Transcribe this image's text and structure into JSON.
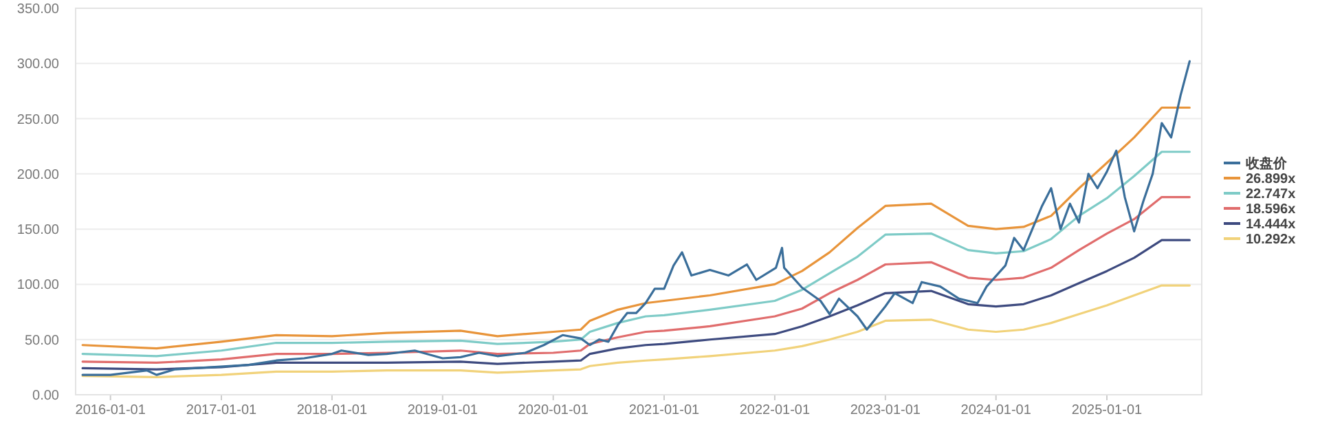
{
  "chart_data": {
    "type": "line",
    "grid": "y",
    "legend": "right",
    "marker": "none",
    "line_style": "solid",
    "xlim": [
      "2015-09-08",
      "2025-11-10"
    ],
    "ylim": [
      0,
      350
    ],
    "xticks": [
      {
        "value": "2016-01-01",
        "label": "2016-01-01"
      },
      {
        "value": "2017-01-01",
        "label": "2017-01-01"
      },
      {
        "value": "2018-01-01",
        "label": "2018-01-01"
      },
      {
        "value": "2019-01-01",
        "label": "2019-01-01"
      },
      {
        "value": "2020-01-01",
        "label": "2020-01-01"
      },
      {
        "value": "2021-01-01",
        "label": "2021-01-01"
      },
      {
        "value": "2022-01-01",
        "label": "2022-01-01"
      },
      {
        "value": "2023-01-01",
        "label": "2023-01-01"
      },
      {
        "value": "2024-01-01",
        "label": "2024-01-01"
      },
      {
        "value": "2025-01-01",
        "label": "2025-01-01"
      }
    ],
    "yticks": [
      {
        "value": 0,
        "label": "0.00"
      },
      {
        "value": 50,
        "label": "50.00"
      },
      {
        "value": 100,
        "label": "100.00"
      },
      {
        "value": 150,
        "label": "150.00"
      },
      {
        "value": 200,
        "label": "200.00"
      },
      {
        "value": 250,
        "label": "250.00"
      },
      {
        "value": 300,
        "label": "300.00"
      },
      {
        "value": 350,
        "label": "350.00"
      }
    ],
    "x": [
      "2015-10",
      "2016-06",
      "2017-01",
      "2017-07",
      "2018-01",
      "2018-07",
      "2019-03",
      "2019-07",
      "2020-01",
      "2020-04",
      "2020-05",
      "2020-08",
      "2020-11",
      "2021-01",
      "2021-06",
      "2022-01",
      "2022-04",
      "2022-07",
      "2022-10",
      "2023-01",
      "2023-06",
      "2023-10",
      "2024-01",
      "2024-04",
      "2024-07",
      "2024-10",
      "2025-01",
      "2025-04",
      "2025-07",
      "2025-10"
    ],
    "series": [
      {
        "name": "收盘价",
        "color": "#3a6e9a",
        "x": [
          "2015-10",
          "2016-01",
          "2016-03",
          "2016-05",
          "2016-06",
          "2016-08",
          "2016-12",
          "2017-04",
          "2017-07",
          "2017-10",
          "2018-01",
          "2018-02",
          "2018-05",
          "2018-07",
          "2018-10",
          "2019-01",
          "2019-03",
          "2019-05",
          "2019-07",
          "2019-10",
          "2019-12",
          "2020-02",
          "2020-04",
          "2020-05",
          "2020-06",
          "2020-07",
          "2020-08",
          "2020-09",
          "2020-10",
          "2020-11",
          "2020-12",
          "2021-01",
          "2021-02",
          "2021-03",
          "2021-04",
          "2021-06",
          "2021-08",
          "2021-10",
          "2021-11",
          "2022-01-05",
          "2022-01-25",
          "2022-02",
          "2022-04",
          "2022-06",
          "2022-07",
          "2022-08",
          "2022-10",
          "2022-11",
          "2023-01",
          "2023-02",
          "2023-04",
          "2023-05",
          "2023-07",
          "2023-09",
          "2023-11",
          "2023-12",
          "2024-02",
          "2024-03",
          "2024-04",
          "2024-06",
          "2024-07",
          "2024-08",
          "2024-09",
          "2024-10",
          "2024-11",
          "2024-12",
          "2025-01",
          "2025-02",
          "2025-03",
          "2025-04",
          "2025-05",
          "2025-06",
          "2025-07",
          "2025-08",
          "2025-09",
          "2025-10"
        ],
        "values": [
          18,
          18,
          20,
          22,
          18,
          23,
          25,
          27,
          31,
          33,
          37,
          40,
          36,
          37,
          40,
          33,
          34,
          38,
          35,
          38,
          45,
          54,
          51,
          45,
          50,
          48,
          63,
          74,
          74,
          83,
          96,
          96,
          117,
          129,
          108,
          113,
          108,
          118,
          104,
          115,
          133,
          115,
          97,
          85,
          73,
          87,
          71,
          59,
          80,
          92,
          83,
          102,
          98,
          87,
          83,
          98,
          117,
          142,
          131,
          171,
          187,
          150,
          173,
          156,
          200,
          187,
          202,
          221,
          179,
          148,
          175,
          200,
          246,
          233,
          271,
          302
        ]
      },
      {
        "name": "26.899x",
        "color": "#e8943a",
        "values": [
          45,
          42,
          48,
          54,
          53,
          56,
          58,
          53,
          57,
          59,
          67,
          77,
          83,
          85,
          90,
          100,
          112,
          129,
          151,
          171,
          173,
          153,
          150,
          152,
          162,
          187,
          210,
          233,
          260,
          260
        ]
      },
      {
        "name": "22.747x",
        "color": "#7ecbc7",
        "values": [
          37,
          35,
          40,
          47,
          47,
          48,
          49,
          46,
          48,
          50,
          57,
          65,
          71,
          72,
          77,
          85,
          95,
          110,
          125,
          145,
          146,
          131,
          128,
          130,
          141,
          162,
          178,
          198,
          220,
          220
        ]
      },
      {
        "name": "18.596x",
        "color": "#e06c6c",
        "values": [
          30,
          29,
          32,
          37,
          37,
          38,
          40,
          37,
          38,
          40,
          46,
          52,
          57,
          58,
          62,
          71,
          78,
          92,
          104,
          118,
          120,
          106,
          104,
          106,
          115,
          131,
          146,
          159,
          179,
          179
        ]
      },
      {
        "name": "14.444x",
        "color": "#3d4a7f",
        "values": [
          24,
          23,
          25,
          29,
          29,
          29,
          30,
          28,
          30,
          31,
          37,
          42,
          45,
          46,
          50,
          55,
          62,
          71,
          81,
          92,
          94,
          82,
          80,
          82,
          90,
          101,
          112,
          124,
          140,
          140
        ]
      },
      {
        "name": "10.292x",
        "color": "#f1d27a",
        "values": [
          17,
          16,
          18,
          21,
          21,
          22,
          22,
          20,
          22,
          23,
          26,
          29,
          31,
          32,
          35,
          40,
          44,
          50,
          57,
          67,
          68,
          59,
          57,
          59,
          65,
          73,
          81,
          90,
          99,
          99
        ]
      }
    ]
  }
}
